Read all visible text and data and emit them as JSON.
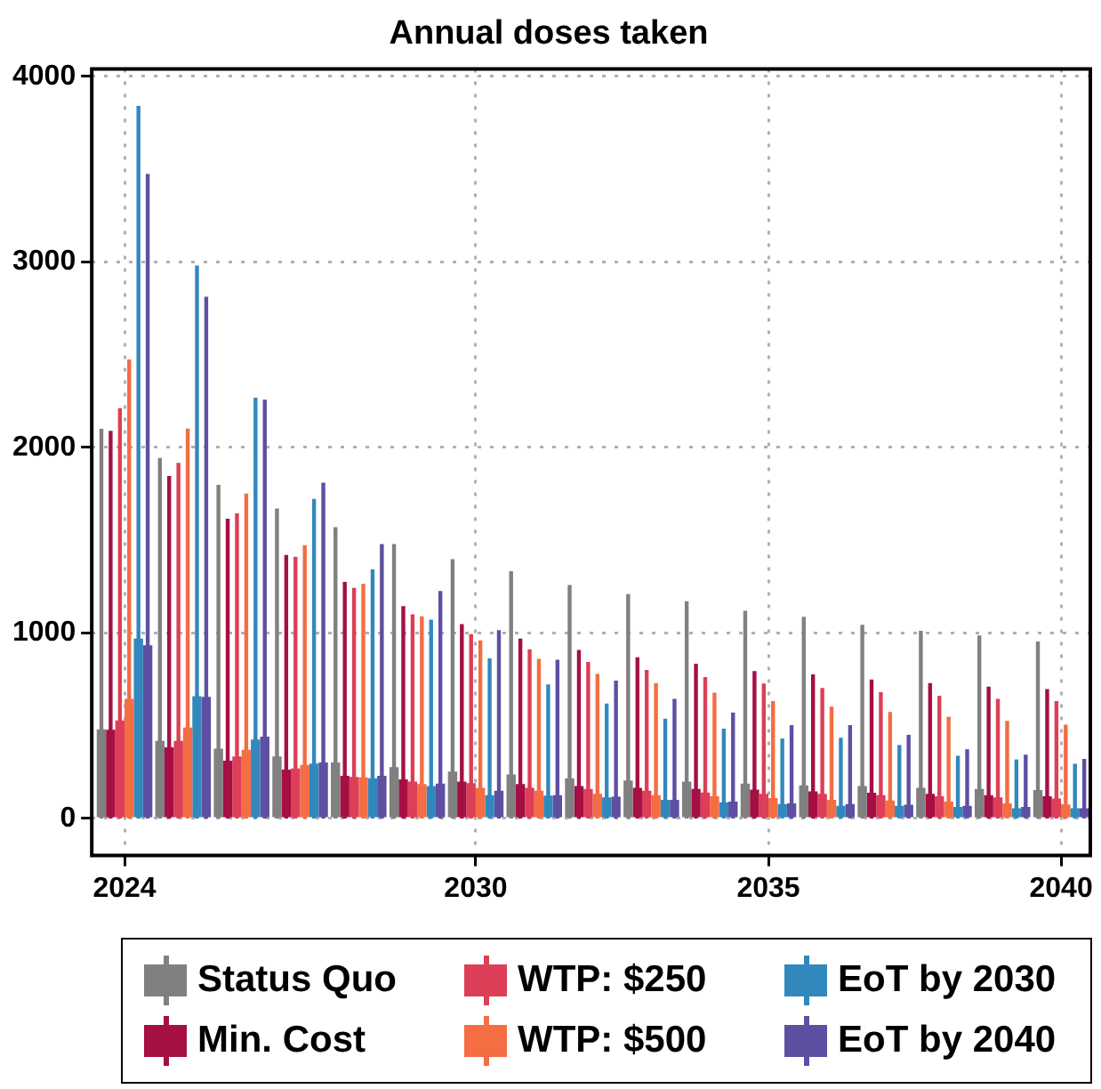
{
  "chart_data": {
    "type": "bar",
    "title": "Annual doses taken",
    "x": [
      2024,
      2025,
      2026,
      2027,
      2028,
      2029,
      2030,
      2031,
      2032,
      2033,
      2034,
      2035,
      2036,
      2037,
      2038,
      2039,
      2040
    ],
    "xlim": [
      2023.44,
      2040.5
    ],
    "xticks": [
      2024,
      2030,
      2035,
      2040
    ],
    "ylim": [
      -200,
      4040
    ],
    "yticks": [
      0,
      1000,
      2000,
      3000,
      4000
    ],
    "grid": true,
    "legend": "bottom",
    "series": [
      {
        "name": "Status Quo",
        "color": "#808080",
        "values": [
          480,
          418,
          376,
          334,
          302,
          276,
          253,
          237,
          217,
          204,
          198,
          188,
          178,
          175,
          165,
          159,
          153
        ],
        "errors": [
          [
            0,
            2100
          ],
          [
            0,
            1943
          ],
          [
            0,
            1798
          ],
          [
            0,
            1671
          ],
          [
            0,
            1570
          ],
          [
            0,
            1479
          ],
          [
            0,
            1398
          ],
          [
            0,
            1333
          ],
          [
            0,
            1258
          ],
          [
            0,
            1210
          ],
          [
            0,
            1171
          ],
          [
            0,
            1119
          ],
          [
            0,
            1087
          ],
          [
            0,
            1044
          ],
          [
            0,
            1012
          ],
          [
            0,
            986
          ],
          [
            0,
            954
          ]
        ]
      },
      {
        "name": "Min. Cost",
        "color": "#a50f44",
        "values": [
          478,
          383,
          311,
          263,
          230,
          211,
          198,
          185,
          175,
          165,
          159,
          156,
          146,
          139,
          133,
          126,
          120
        ],
        "errors": [
          [
            0,
            2090
          ],
          [
            0,
            1846
          ],
          [
            0,
            1616
          ],
          [
            0,
            1421
          ],
          [
            0,
            1275
          ],
          [
            0,
            1145
          ],
          [
            0,
            1048
          ],
          [
            0,
            970
          ],
          [
            0,
            908
          ],
          [
            0,
            869
          ],
          [
            0,
            834
          ],
          [
            0,
            795
          ],
          [
            0,
            776
          ],
          [
            0,
            749
          ],
          [
            0,
            730
          ],
          [
            0,
            710
          ],
          [
            0,
            698
          ]
        ]
      },
      {
        "name": "WTP: $250",
        "color": "#dc3f57",
        "values": [
          528,
          418,
          334,
          269,
          224,
          198,
          190,
          165,
          159,
          149,
          140,
          133,
          133,
          126,
          120,
          114,
          107
        ],
        "errors": [
          [
            0,
            2212
          ],
          [
            0,
            1917
          ],
          [
            0,
            1645
          ],
          [
            0,
            1411
          ],
          [
            0,
            1243
          ],
          [
            0,
            1100
          ],
          [
            0,
            993
          ],
          [
            0,
            912
          ],
          [
            0,
            844
          ],
          [
            0,
            801
          ],
          [
            0,
            762
          ],
          [
            0,
            727
          ],
          [
            0,
            704
          ],
          [
            0,
            681
          ],
          [
            0,
            662
          ],
          [
            0,
            645
          ],
          [
            0,
            633
          ]
        ]
      },
      {
        "name": "WTP: $500",
        "color": "#f46d43",
        "values": [
          645,
          490,
          370,
          289,
          221,
          185,
          165,
          149,
          133,
          126,
          120,
          110,
          100,
          97,
          91,
          81,
          75
        ],
        "errors": [
          [
            0,
            2475
          ],
          [
            0,
            2102
          ],
          [
            0,
            1752
          ],
          [
            0,
            1473
          ],
          [
            0,
            1265
          ],
          [
            0,
            1090
          ],
          [
            0,
            960
          ],
          [
            0,
            860
          ],
          [
            0,
            779
          ],
          [
            0,
            730
          ],
          [
            0,
            678
          ],
          [
            0,
            633
          ],
          [
            0,
            603
          ],
          [
            0,
            574
          ],
          [
            0,
            548
          ],
          [
            0,
            526
          ],
          [
            0,
            506
          ]
        ]
      },
      {
        "name": "EoT by 2030",
        "color": "#3288bd",
        "values": [
          970,
          659,
          425,
          296,
          217,
          175,
          126,
          123,
          114,
          100,
          87,
          78,
          68,
          68,
          62,
          55,
          55
        ],
        "errors": [
          [
            0,
            3841
          ],
          [
            0,
            2981
          ],
          [
            0,
            2268
          ],
          [
            0,
            1723
          ],
          [
            0,
            1343
          ],
          [
            0,
            1071
          ],
          [
            0,
            863
          ],
          [
            0,
            723
          ],
          [
            0,
            620
          ],
          [
            0,
            538
          ],
          [
            0,
            484
          ],
          [
            0,
            431
          ],
          [
            0,
            435
          ],
          [
            0,
            396
          ],
          [
            0,
            338
          ],
          [
            0,
            318
          ],
          [
            0,
            295
          ]
        ]
      },
      {
        "name": "EoT by 2040",
        "color": "#5e4fa2",
        "values": [
          934,
          656,
          441,
          302,
          230,
          188,
          149,
          126,
          117,
          100,
          91,
          81,
          78,
          74,
          68,
          62,
          55
        ],
        "errors": [
          [
            0,
            3474
          ],
          [
            0,
            2813
          ],
          [
            0,
            2258
          ],
          [
            0,
            1810
          ],
          [
            0,
            1479
          ],
          [
            0,
            1226
          ],
          [
            0,
            1015
          ],
          [
            0,
            856
          ],
          [
            0,
            743
          ],
          [
            0,
            645
          ],
          [
            0,
            571
          ],
          [
            0,
            503
          ],
          [
            0,
            503
          ],
          [
            0,
            451
          ],
          [
            0,
            373
          ],
          [
            0,
            344
          ],
          [
            0,
            321
          ]
        ]
      }
    ]
  }
}
